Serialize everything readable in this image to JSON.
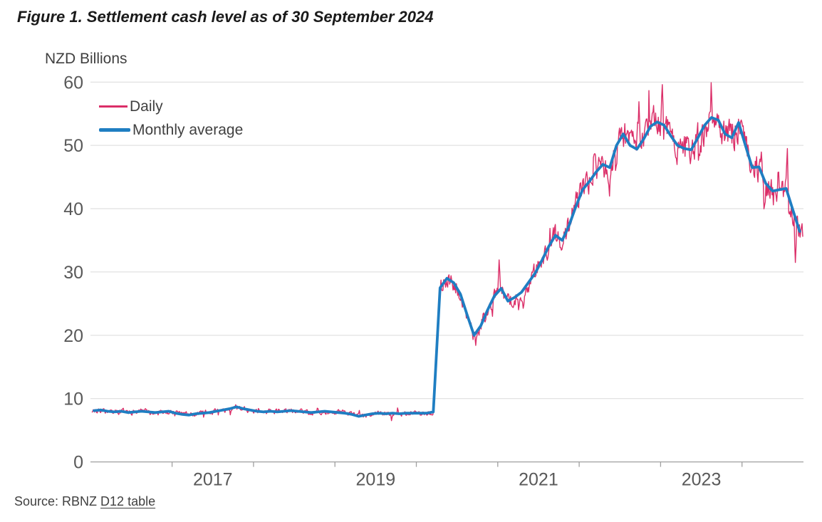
{
  "title": "Figure 1. Settlement cash level as of 30 September 2024",
  "axis_unit_label": "NZD Billions",
  "legend": {
    "daily": "Daily",
    "monthly": "Monthly average"
  },
  "source": {
    "prefix": "Source: RBNZ ",
    "link": "D12 table"
  },
  "colors": {
    "daily_line": "#DB2E68",
    "monthly_line": "#1F7EC2",
    "gridline": "#DADADA",
    "axis": "#A0A0A0",
    "tick_text": "#595959",
    "body_text": "#404040",
    "title_text": "#1A1A1A"
  },
  "chart_data": {
    "type": "line",
    "title": "Figure 1. Settlement cash level as of 30 September 2024",
    "xlabel": "",
    "ylabel": "NZD Billions",
    "ylim": [
      0,
      60
    ],
    "y_ticks": [
      0,
      10,
      20,
      30,
      40,
      50,
      60
    ],
    "x_range_years": [
      2016.0,
      2024.79
    ],
    "x_tick_years": [
      2017,
      2018,
      2019,
      2020,
      2021,
      2022,
      2023,
      2024
    ],
    "x_label_years": [
      2017,
      2019,
      2021,
      2023
    ],
    "grid": "horizontal-only",
    "legend_position": "top-left",
    "series": [
      {
        "name": "Monthly average",
        "frequency": "monthly",
        "start_year": 2016,
        "start_month": 1,
        "end_year": 2024,
        "end_month": 9,
        "values": [
          8.1,
          8.2,
          8.0,
          7.9,
          8.0,
          7.8,
          7.9,
          8.0,
          7.9,
          7.8,
          7.9,
          8.0,
          7.7,
          7.5,
          7.4,
          7.6,
          7.7,
          7.8,
          8.0,
          8.2,
          8.4,
          8.7,
          8.4,
          8.2,
          8.0,
          7.9,
          8.0,
          7.9,
          8.0,
          8.1,
          8.0,
          7.9,
          7.8,
          7.9,
          8.0,
          7.9,
          7.8,
          7.7,
          7.5,
          7.2,
          7.4,
          7.6,
          7.7,
          7.6,
          7.7,
          7.6,
          7.7,
          7.7,
          7.7,
          7.7,
          7.9,
          27.5,
          29.0,
          28.3,
          26.5,
          23.2,
          20.0,
          21.5,
          24.0,
          26.2,
          27.4,
          25.4,
          26.0,
          26.8,
          28.3,
          29.8,
          31.8,
          34.0,
          35.8,
          35.0,
          37.3,
          40.3,
          43.0,
          44.3,
          45.8,
          47.0,
          46.5,
          50.0,
          51.8,
          50.0,
          49.4,
          51.0,
          53.0,
          53.7,
          53.2,
          51.5,
          50.0,
          49.5,
          49.3,
          51.2,
          53.2,
          54.4,
          54.0,
          51.8,
          51.2,
          53.6,
          50.0,
          46.5,
          46.6,
          44.0,
          42.8,
          43.0,
          43.2,
          39.8,
          36.4
        ]
      },
      {
        "name": "Daily",
        "frequency": "daily",
        "derived_from": "monthly-average-plus-observed-volatility",
        "noise": {
          "seed": 20240930,
          "step_days": 3,
          "amplitude_fraction": 0.055,
          "min_amplitude": 0.45,
          "autocorrelation": 0.45,
          "spike_probability": 0.055,
          "spike_scale": 1.9
        },
        "observed_extremes": [
          {
            "t": 2020.73,
            "value": 18.4
          },
          {
            "t": 2021.02,
            "value": 31.9
          },
          {
            "t": 2022.375,
            "value": 42.0
          },
          {
            "t": 2023.023,
            "value": 59.6
          },
          {
            "t": 2024.555,
            "value": 49.5
          },
          {
            "t": 2024.655,
            "value": 31.5
          }
        ]
      }
    ]
  }
}
